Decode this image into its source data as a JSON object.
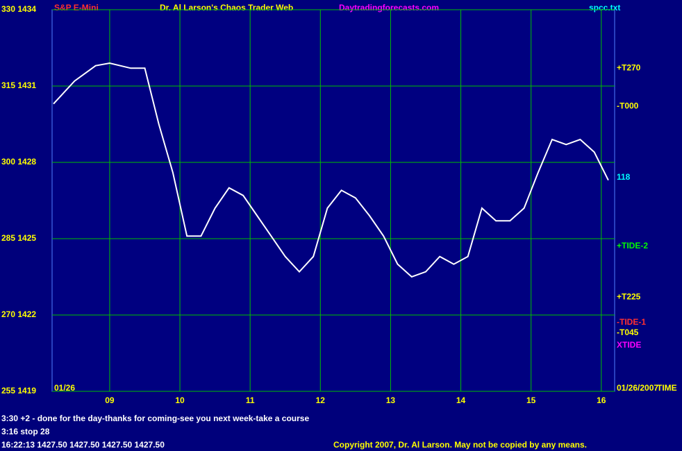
{
  "chart_data": {
    "type": "line",
    "title": "S&P E-Mini",
    "subtitle": "Dr. Al Larson's Chaos Trader Web",
    "website": "Daytradingforecasts.com",
    "source": "spcc.txt",
    "date_start": "01/26",
    "date_end": "01/26/2007",
    "time_label": "TIME",
    "color": "#ffffff",
    "x": [
      8.2,
      8.5,
      8.8,
      9.0,
      9.3,
      9.5,
      9.7,
      9.9,
      10.1,
      10.3,
      10.5,
      10.7,
      10.9,
      11.1,
      11.3,
      11.5,
      11.7,
      11.9,
      12.1,
      12.3,
      12.5,
      12.7,
      12.9,
      13.1,
      13.3,
      13.5,
      13.7,
      13.9,
      14.1,
      14.3,
      14.5,
      14.7,
      14.9,
      15.1,
      15.3,
      15.5,
      15.7,
      15.9,
      16.1
    ],
    "values": [
      1430.3,
      1431.2,
      1431.8,
      1431.9,
      1431.7,
      1431.7,
      1429.5,
      1427.6,
      1425.1,
      1425.1,
      1426.2,
      1427.0,
      1426.7,
      1425.9,
      1425.1,
      1424.3,
      1423.7,
      1424.3,
      1426.2,
      1426.9,
      1426.6,
      1425.9,
      1425.1,
      1424.0,
      1423.5,
      1423.7,
      1424.3,
      1424.0,
      1424.3,
      1426.2,
      1425.7,
      1425.7,
      1426.2,
      1427.6,
      1428.9,
      1428.7,
      1428.9,
      1428.4,
      1427.3
    ],
    "xlim": [
      8.18,
      16.19
    ],
    "xticks": [
      {
        "value": 9,
        "label": "09"
      },
      {
        "value": 10,
        "label": "10"
      },
      {
        "value": 11,
        "label": "11"
      },
      {
        "value": 12,
        "label": "12"
      },
      {
        "value": 13,
        "label": "13"
      },
      {
        "value": 14,
        "label": "14"
      },
      {
        "value": 15,
        "label": "15"
      },
      {
        "value": 16,
        "label": "16"
      }
    ],
    "ylim": [
      1419,
      1434
    ],
    "yticks": [
      {
        "value": 1434,
        "label": "330 1434"
      },
      {
        "value": 1431,
        "label": "315 1431"
      },
      {
        "value": 1428,
        "label": "300 1428"
      },
      {
        "value": 1425,
        "label": "285 1425"
      },
      {
        "value": 1422,
        "label": "270 1422"
      },
      {
        "value": 1419,
        "label": "255 1419"
      }
    ],
    "grid": true,
    "levels": [
      {
        "text": "+T270",
        "y": 1431.7,
        "color": "#ffff00"
      },
      {
        "text": "-T000",
        "y": 1430.2,
        "color": "#ffff00"
      },
      {
        "text": "118",
        "y": 1427.4,
        "color": "#00ffff"
      },
      {
        "text": "+TIDE-2",
        "y": 1424.7,
        "color": "#00ff00"
      },
      {
        "text": "+T225",
        "y": 1422.7,
        "color": "#ffff00"
      },
      {
        "text": "-TIDE-1",
        "y": 1421.7,
        "color": "#ff3030"
      },
      {
        "text": "-T045",
        "y": 1421.3,
        "color": "#ffff00"
      },
      {
        "text": "XTIDE",
        "y": 1420.8,
        "color": "#ff00ff"
      }
    ],
    "notes": [
      "3:30 +2 - done for the day-thanks for coming-see you next week-take a course",
      "3:16 stop 28",
      "16:22:13  1427.50 1427.50 1427.50 1427.50"
    ],
    "copyright": "Copyright 2007, Dr. Al Larson. May not be copied by any means."
  }
}
